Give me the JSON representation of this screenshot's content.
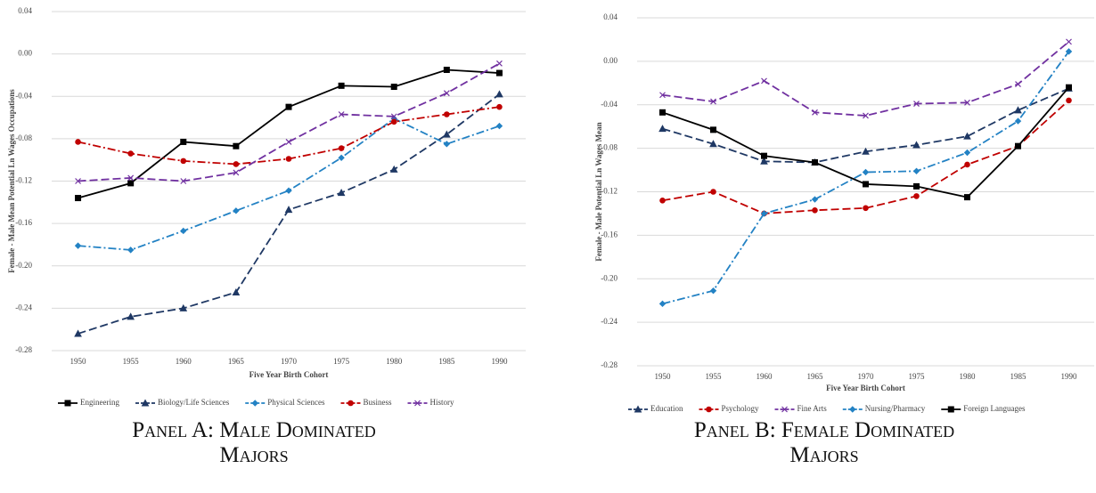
{
  "chart_data": [
    {
      "type": "line",
      "caption": "Panel A: Male Dominated Majors",
      "x_label": "Five Year Birth Cohort",
      "y_label": "Female - Male Mean Potential Ln Wages Occupations",
      "categories": [
        "1950",
        "1955",
        "1960",
        "1965",
        "1970",
        "1975",
        "1980",
        "1985",
        "1990"
      ],
      "ylim": [
        -0.28,
        0.04
      ],
      "yticks": [
        -0.28,
        -0.24,
        {
          "value": -0.2,
          "label": "-0.20"
        },
        -0.16,
        -0.12,
        -0.08,
        -0.04,
        {
          "value": 0,
          "label": "0.00"
        },
        0.04
      ],
      "grid": true,
      "legend": "bottom",
      "series": [
        {
          "name": "Engineering",
          "color": "#000000",
          "linestyle": "solid",
          "marker": "square",
          "values": [
            -0.136,
            -0.122,
            -0.083,
            -0.087,
            -0.05,
            -0.03,
            -0.031,
            -0.015,
            -0.018
          ]
        },
        {
          "name": "Biology/Life Sciences",
          "color": "#1f3864",
          "linestyle": "dashed",
          "marker": "triangle",
          "values": [
            -0.264,
            -0.248,
            -0.24,
            -0.225,
            -0.147,
            -0.131,
            -0.109,
            -0.076,
            -0.038
          ]
        },
        {
          "name": "Physical Sciences",
          "color": "#2382c4",
          "linestyle": "dashdot",
          "marker": "diamond",
          "values": [
            -0.181,
            -0.185,
            -0.167,
            -0.148,
            -0.129,
            -0.098,
            -0.061,
            -0.085,
            -0.068
          ]
        },
        {
          "name": "Business",
          "color": "#c00000",
          "linestyle": "dashdot",
          "marker": "circle",
          "values": [
            -0.083,
            -0.094,
            -0.101,
            -0.104,
            -0.099,
            -0.089,
            -0.064,
            -0.057,
            -0.05
          ]
        },
        {
          "name": "History",
          "color": "#7030a0",
          "linestyle": "dashed",
          "marker": "x",
          "values": [
            -0.12,
            -0.117,
            -0.12,
            -0.112,
            -0.083,
            -0.057,
            -0.059,
            -0.037,
            -0.009
          ]
        }
      ]
    },
    {
      "type": "line",
      "caption": "Panel B: Female Dominated Majors",
      "x_label": "Five Year Birth Cohort",
      "y_label": "Female - Male Potential Ln Wages Mean",
      "categories": [
        "1950",
        "1955",
        "1960",
        "1965",
        "1970",
        "1975",
        "1980",
        "1985",
        "1990"
      ],
      "ylim": [
        -0.28,
        0.04
      ],
      "yticks": [
        -0.28,
        -0.24,
        {
          "value": -0.2,
          "label": "-0.20"
        },
        -0.16,
        -0.12,
        -0.08,
        -0.04,
        {
          "value": 0,
          "label": "0.00"
        },
        0.04
      ],
      "grid": true,
      "legend": "bottom",
      "series": [
        {
          "name": "Education",
          "color": "#1f3864",
          "linestyle": "dashed",
          "marker": "triangle",
          "values": [
            -0.062,
            -0.076,
            -0.092,
            -0.093,
            -0.083,
            -0.077,
            -0.069,
            -0.045,
            -0.025
          ]
        },
        {
          "name": "Psychology",
          "color": "#c00000",
          "linestyle": "dashed",
          "marker": "circle",
          "values": [
            -0.128,
            -0.12,
            -0.14,
            -0.137,
            -0.135,
            -0.124,
            -0.095,
            -0.078,
            -0.036
          ]
        },
        {
          "name": "Fine Arts",
          "color": "#7030a0",
          "linestyle": "dashed",
          "marker": "x",
          "values": [
            -0.031,
            -0.037,
            -0.018,
            -0.047,
            -0.05,
            -0.039,
            -0.038,
            -0.021,
            0.018
          ]
        },
        {
          "name": "Nursing/Pharmacy",
          "color": "#2382c4",
          "linestyle": "dashdot",
          "marker": "diamond",
          "values": [
            -0.223,
            -0.211,
            -0.14,
            -0.127,
            -0.102,
            -0.101,
            -0.084,
            -0.055,
            0.009
          ]
        },
        {
          "name": "Foreign Languages",
          "color": "#000000",
          "linestyle": "solid",
          "marker": "square",
          "values": [
            -0.047,
            -0.063,
            -0.087,
            -0.093,
            -0.113,
            -0.115,
            -0.125,
            -0.078,
            -0.024
          ]
        }
      ]
    }
  ]
}
